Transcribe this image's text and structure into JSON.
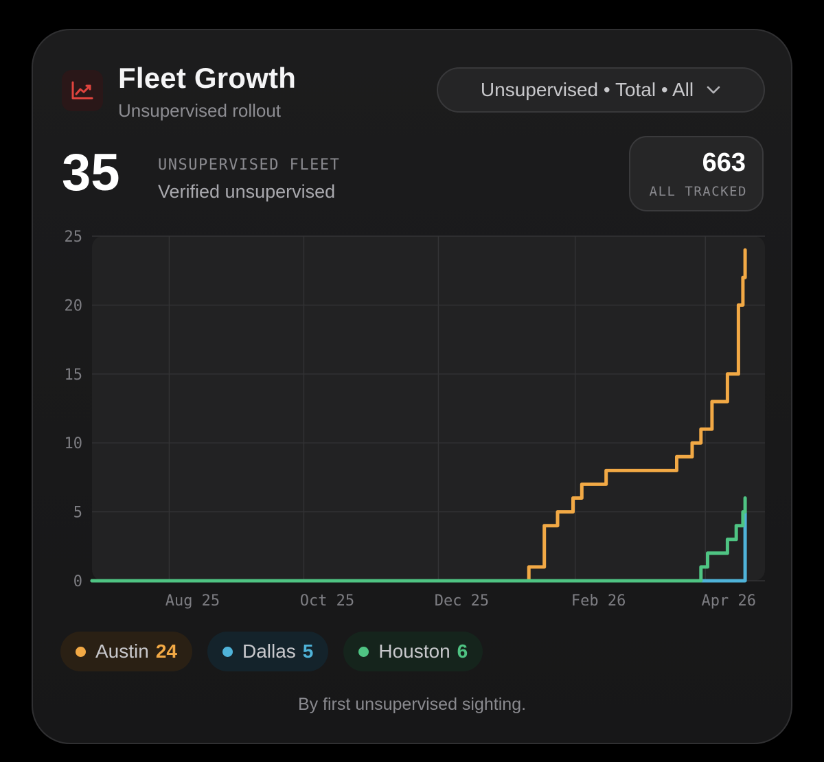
{
  "header": {
    "title": "Fleet Growth",
    "subtitle": "Unsupervised rollout",
    "filter_label": "Unsupervised • Total • All",
    "accent": "#e0443e"
  },
  "kpi": {
    "value": "35",
    "label": "UNSUPERVISED FLEET",
    "sub": "Verified unsupervised"
  },
  "tracked": {
    "value": "663",
    "label": "ALL TRACKED"
  },
  "legend": [
    {
      "name": "Austin",
      "count": "24",
      "color": "#f2a945",
      "bg": "#2a2014"
    },
    {
      "name": "Dallas",
      "count": "5",
      "color": "#4fb3d9",
      "bg": "#14232b"
    },
    {
      "name": "Houston",
      "count": "6",
      "color": "#4fc483",
      "bg": "#15241c"
    }
  ],
  "footnote": "By first unsupervised sighting.",
  "chart_data": {
    "type": "line",
    "step": true,
    "x_axis": {
      "type": "date",
      "range": [
        "2025-06-27",
        "2026-04-28"
      ],
      "ticks": [
        {
          "label": "Aug 25",
          "date": "2025-08-01"
        },
        {
          "label": "Oct 25",
          "date": "2025-10-01"
        },
        {
          "label": "Dec 25",
          "date": "2025-12-01"
        },
        {
          "label": "Feb 26",
          "date": "2026-02-01"
        },
        {
          "label": "Apr 26",
          "date": "2026-04-01"
        }
      ]
    },
    "y_axis": {
      "range": [
        0,
        25
      ],
      "ticks": [
        0,
        5,
        10,
        15,
        20,
        25
      ]
    },
    "grid": true,
    "series": [
      {
        "name": "Austin",
        "color": "#f2a945",
        "points": [
          [
            "2025-06-27",
            0
          ],
          [
            "2026-01-11",
            1
          ],
          [
            "2026-01-18",
            4
          ],
          [
            "2026-01-24",
            5
          ],
          [
            "2026-01-31",
            6
          ],
          [
            "2026-02-04",
            7
          ],
          [
            "2026-02-15",
            8
          ],
          [
            "2026-03-19",
            9
          ],
          [
            "2026-03-26",
            10
          ],
          [
            "2026-03-30",
            11
          ],
          [
            "2026-04-04",
            13
          ],
          [
            "2026-04-11",
            15
          ],
          [
            "2026-04-16",
            20
          ],
          [
            "2026-04-18",
            22
          ],
          [
            "2026-04-19",
            24
          ]
        ]
      },
      {
        "name": "Dallas",
        "color": "#4fb3d9",
        "points": [
          [
            "2025-06-27",
            0
          ],
          [
            "2026-03-28",
            0
          ],
          [
            "2026-04-19",
            5
          ]
        ]
      },
      {
        "name": "Houston",
        "color": "#4fc483",
        "points": [
          [
            "2025-06-27",
            0
          ],
          [
            "2026-03-30",
            1
          ],
          [
            "2026-04-02",
            2
          ],
          [
            "2026-04-11",
            3
          ],
          [
            "2026-04-15",
            4
          ],
          [
            "2026-04-18",
            5
          ],
          [
            "2026-04-19",
            6
          ]
        ]
      }
    ]
  }
}
